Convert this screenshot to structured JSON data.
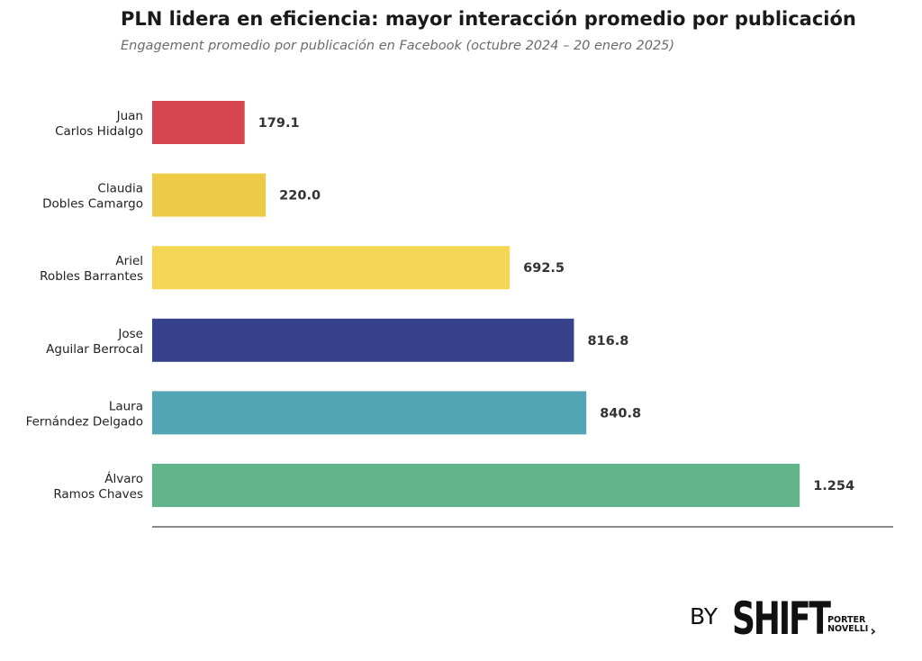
{
  "header": {
    "title": "PLN lidera en eficiencia: mayor interacción promedio por publicación",
    "subtitle": "Engagement promedio por publicación en Facebook (octubre 2024 – 20 enero 2025)"
  },
  "chart_data": {
    "type": "bar",
    "orientation": "horizontal",
    "title": "PLN lidera en eficiencia: mayor interacción promedio por publicación",
    "subtitle": "Engagement promedio por publicación en Facebook (octubre 2024 – 20 enero 2025)",
    "categories": [
      [
        "Juan",
        "Carlos Hidalgo"
      ],
      [
        "Claudia",
        "Dobles Camargo"
      ],
      [
        "Ariel",
        "Robles Barrantes"
      ],
      [
        "Jose",
        "Aguilar Berrocal"
      ],
      [
        "Laura",
        "Fernández Delgado"
      ],
      [
        "Álvaro",
        "Ramos Chaves"
      ]
    ],
    "values": [
      179.1,
      220.0,
      692.5,
      816.8,
      840.8,
      1254
    ],
    "value_labels": [
      "179.1",
      "220.0",
      "692.5",
      "816.8",
      "840.8",
      "1.254"
    ],
    "colors": [
      "#d74650",
      "#eecb47",
      "#f6d655",
      "#38418b",
      "#52a5b3",
      "#62b48b"
    ],
    "xlim": [
      0,
      1435
    ],
    "grid": false,
    "legend": "none",
    "xlabel": "",
    "ylabel": ""
  },
  "logo": {
    "by": "BY",
    "brand": "SHIFT",
    "sub_line1": "PORTER",
    "sub_line2": "NOVELLI",
    "arrow": "›"
  }
}
